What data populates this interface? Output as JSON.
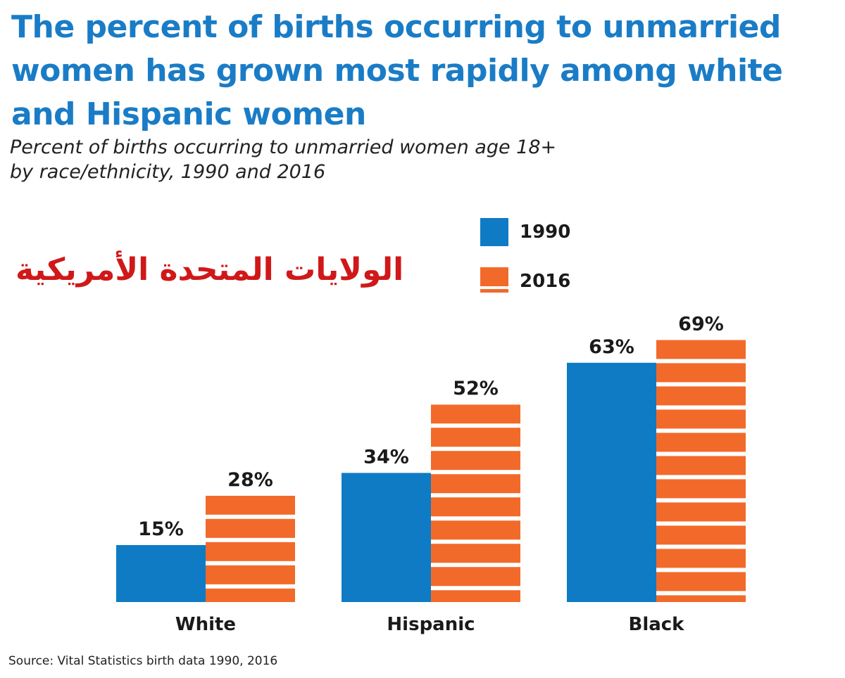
{
  "title": "The percent of births occurring to unmarried women has grown most rapidly among white and Hispanic women",
  "subtitle_line1": "Percent of births occurring to unmarried women age 18+",
  "subtitle_line2": "by race/ethnicity, 1990 and 2016",
  "watermark": "الولايات المتحدة الأمريكية",
  "source": "Source: Vital Statistics birth data 1990, 2016",
  "colors": {
    "title": "#1a7cc6",
    "series_1990": "#0f7bc4",
    "series_2016": "#f26a2a",
    "watermark": "#d01818"
  },
  "legend": {
    "items": [
      {
        "label": "1990",
        "color": "#0f7bc4",
        "pattern": "solid"
      },
      {
        "label": "2016",
        "color": "#f26a2a",
        "pattern": "striped"
      }
    ]
  },
  "chart_data": {
    "type": "bar",
    "title": "The percent of births occurring to unmarried women has grown most rapidly among white and Hispanic women",
    "subtitle": "Percent of births occurring to unmarried women age 18+ by race/ethnicity, 1990 and 2016",
    "categories": [
      "White",
      "Hispanic",
      "Black"
    ],
    "series": [
      {
        "name": "1990",
        "values": [
          15,
          34,
          63
        ],
        "labels": [
          "15%",
          "34%",
          "63%"
        ]
      },
      {
        "name": "2016",
        "values": [
          28,
          52,
          69
        ],
        "labels": [
          "28%",
          "52%",
          "69%"
        ]
      }
    ],
    "xlabel": "",
    "ylabel": "",
    "ylim": [
      0,
      100
    ],
    "grid": false,
    "legend_position": "top-right"
  }
}
